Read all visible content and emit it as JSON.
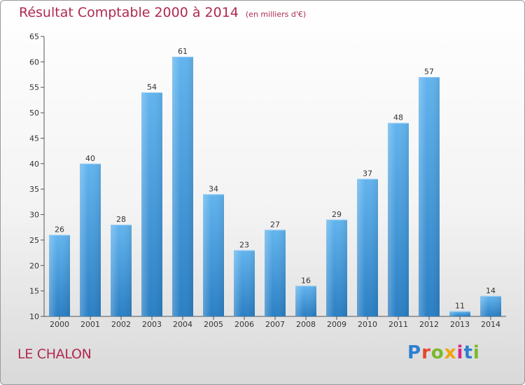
{
  "title": "Résultat Comptable 2000 à 2014",
  "subtitle": "(en milliers d'€)",
  "town": "LE CHALON",
  "logo": {
    "letters": [
      "P",
      "r",
      "o",
      "x",
      "i",
      "t",
      "i"
    ],
    "colors": [
      "#2c7fd1",
      "#e8452c",
      "#7ab82a",
      "#f0a30a",
      "#d7268a",
      "#2c7fd1",
      "#7ab82a"
    ]
  },
  "colors": {
    "bar": "#3f9ce0",
    "bar_light": "#62b4ee",
    "bar_dark": "#2a7fc4",
    "title": "#b0294e"
  },
  "chart_data": {
    "type": "bar",
    "categories": [
      "2000",
      "2001",
      "2002",
      "2003",
      "2004",
      "2005",
      "2006",
      "2007",
      "2008",
      "2009",
      "2010",
      "2011",
      "2012",
      "2013",
      "2014"
    ],
    "values": [
      26,
      40,
      28,
      54,
      61,
      34,
      23,
      27,
      16,
      29,
      37,
      48,
      57,
      11,
      14
    ],
    "ylim": [
      10,
      65
    ],
    "yticks": [
      10,
      15,
      20,
      25,
      30,
      35,
      40,
      45,
      50,
      55,
      60,
      65
    ],
    "grid": false,
    "title": "Résultat Comptable 2000 à 2014",
    "xlabel": "",
    "ylabel": ""
  }
}
